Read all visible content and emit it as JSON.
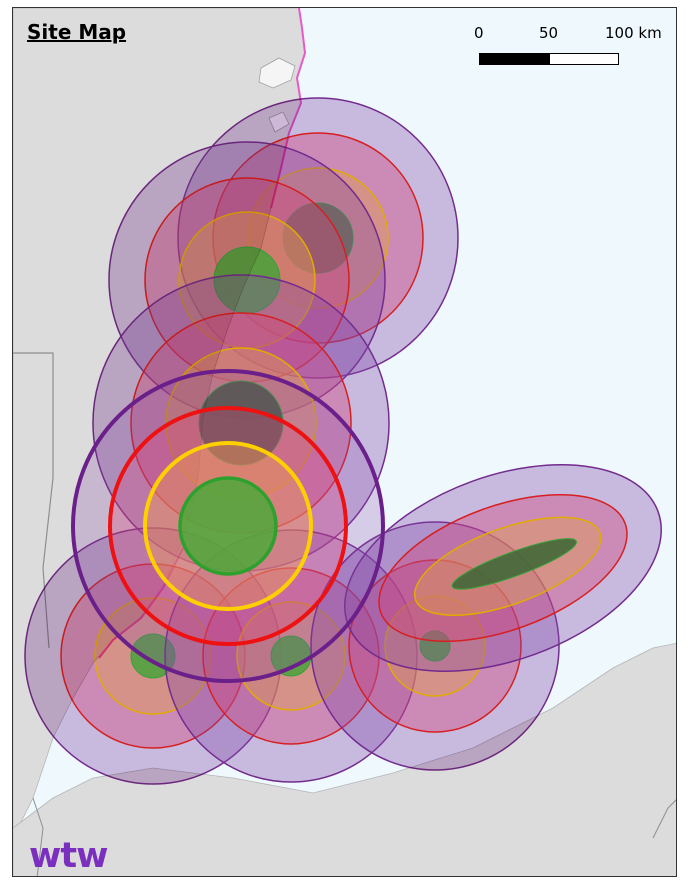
{
  "title": "Site Map",
  "scale": {
    "labels": [
      "0",
      "50",
      "100 km"
    ]
  },
  "logo": "wtw",
  "colors": {
    "land": "#dcdcdc",
    "sea": "#eef8fd",
    "border": "#9a9a9a",
    "coast_highlight": "#e65ac8",
    "ring_outer": "#7b2c8f",
    "ring_red": "#e62020",
    "ring_orange": "#f2b000",
    "ring_green": "#3aa63a",
    "logo": "#7b2fbe"
  },
  "sites": [
    {
      "name": "north-east",
      "highlighted": false
    },
    {
      "name": "north",
      "highlighted": false
    },
    {
      "name": "central-north",
      "highlighted": false
    },
    {
      "name": "central",
      "highlighted": true
    },
    {
      "name": "south-west",
      "highlighted": false
    },
    {
      "name": "south-central",
      "highlighted": false
    },
    {
      "name": "south-east",
      "highlighted": false
    },
    {
      "name": "east-elongated",
      "highlighted": false
    }
  ]
}
